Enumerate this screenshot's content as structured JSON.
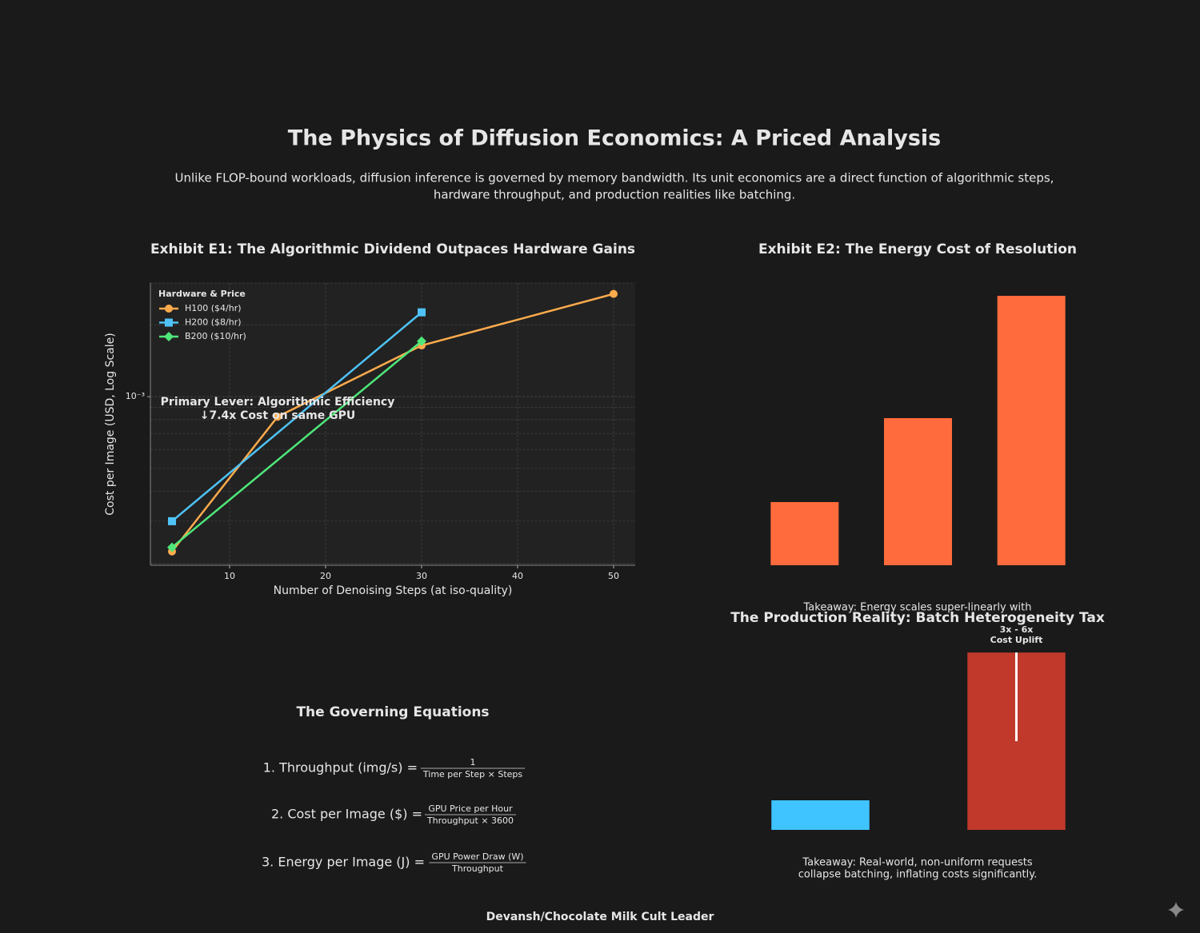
{
  "title": "The Physics of Diffusion Economics: A Priced Analysis",
  "subtitle": [
    "Unlike FLOP-bound workloads, diffusion inference is governed by memory bandwidth. Its unit economics are a direct function of algorithmic steps,",
    "hardware throughput, and production realities like batching."
  ],
  "equations": {
    "title": "The Governing Equations",
    "items": [
      {
        "lhs": "1. Throughput (img/s) =",
        "numerator": "1",
        "denominator": "Time per Step × Steps"
      },
      {
        "lhs": "2. Cost per Image ($) =",
        "numerator": "GPU Price per Hour",
        "denominator": "Throughput × 3600"
      },
      {
        "lhs": "3. Energy per Image (J) =",
        "numerator": "GPU Power Draw (W)",
        "denominator": "Throughput"
      }
    ]
  },
  "footer": "Devansh/Chocolate Milk Cult Leader",
  "chart_data": [
    {
      "type": "line",
      "title": "Exhibit E1: The Algorithmic Dividend Outpaces Hardware Gains",
      "xlabel": "Number of Denoising Steps (at iso-quality)",
      "ylabel": "Cost per Image (USD, Log Scale)",
      "log_y": true,
      "grid": true,
      "legend": "upper left",
      "legend_title": "Hardware & Price",
      "series": [
        {
          "name": "H100 ($4/hr)",
          "color": "#ffab4c",
          "marker": "circle",
          "x": [
            4,
            15,
            30,
            50
          ],
          "values": [
            0.000224,
            0.000824,
            0.00164,
            0.0027
          ]
        },
        {
          "name": "H200 ($8/hr)",
          "color": "#4fc3f7",
          "marker": "square",
          "x": [
            4,
            30
          ],
          "values": [
            0.0003,
            0.00226
          ]
        },
        {
          "name": "B200 ($10/hr)",
          "color": "#4ee87a",
          "marker": "diamond",
          "x": [
            4,
            30
          ],
          "values": [
            0.000233,
            0.00171
          ]
        }
      ],
      "xlim": [
        1.75,
        52.25
      ],
      "xticks": [
        10,
        20,
        30,
        40,
        50
      ],
      "ylim": [
        0.000196,
        0.003
      ],
      "yticks": [
        {
          "value": 0.001,
          "label": "10⁻³"
        }
      ],
      "yticks_minor": [
        0.0002,
        0.0003,
        0.0004,
        0.0005,
        0.0006,
        0.0007,
        0.0008,
        0.0009,
        0.002,
        0.003
      ],
      "annotation": [
        "Primary Lever: Algorithmic Efficiency",
        "↓7.4x Cost on same GPU"
      ]
    },
    {
      "type": "bar",
      "title": "Exhibit E2: The Energy Cost of Resolution",
      "categories": [
        null,
        null,
        null
      ],
      "values": [
        79,
        184,
        337
      ],
      "color": "#ff6b3d",
      "ylim": [
        0,
        353
      ],
      "takeaway": [
        "Takeaway: Energy scales super-linearly with"
      ]
    },
    {
      "type": "bar",
      "title": "The Production Reality: Batch Heterogeneity Tax",
      "categories": [
        null,
        null
      ],
      "values": [
        1,
        6
      ],
      "colors": [
        "#40c4ff",
        "#c0392b"
      ],
      "error_lower": [
        null,
        3
      ],
      "ylim": [
        0,
        6.6
      ],
      "annotation": [
        "3x - 6x",
        "Cost Uplift"
      ],
      "takeaway": [
        "Takeaway: Real-world, non-uniform requests",
        "collapse batching, inflating costs significantly."
      ]
    }
  ]
}
